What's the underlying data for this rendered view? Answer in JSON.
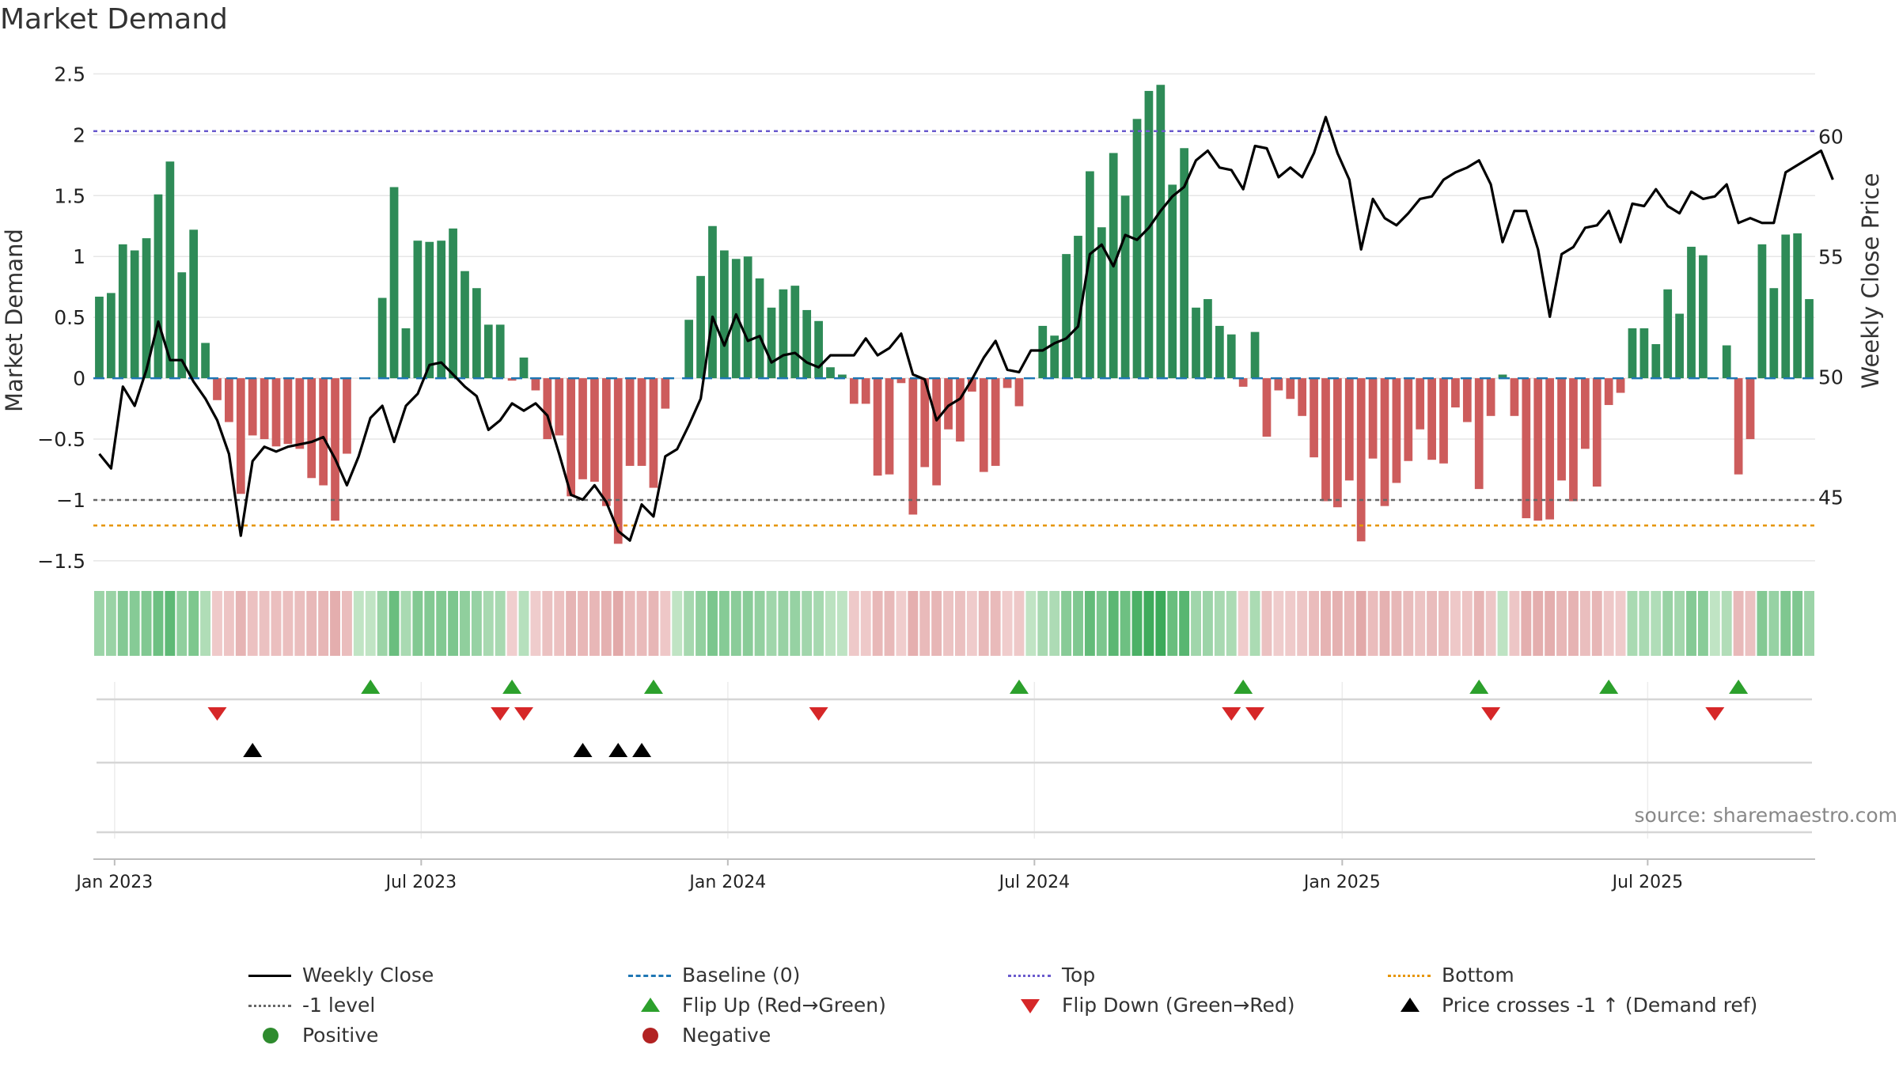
{
  "title": "Market Demand",
  "source": "source: sharemaestro.com",
  "colors": {
    "positive_bar": "#2e8b57",
    "negative_bar": "#cd5c5c",
    "price_line": "#000000",
    "baseline": "#1f77b4",
    "top_line": "#6a5acd",
    "bottom_line": "#e69500",
    "minus1_line": "#666666",
    "flip_up": "#2ca02c",
    "flip_down": "#d62728",
    "cross": "#000000",
    "positive_dot": "#2e8b2e",
    "negative_dot": "#b22222"
  },
  "legend": [
    {
      "label": "Weekly Close",
      "symbol": "solid-line",
      "color": "#000000"
    },
    {
      "label": "Baseline (0)",
      "symbol": "dashed-line",
      "color": "#1f77b4"
    },
    {
      "label": "Top",
      "symbol": "dotted-line",
      "color": "#6a5acd"
    },
    {
      "label": "Bottom",
      "symbol": "dotted-line",
      "color": "#e69500"
    },
    {
      "label": "-1 level",
      "symbol": "dotted-line",
      "color": "#666666"
    },
    {
      "label": "Flip Up (Red→Green)",
      "symbol": "triangle-up",
      "color": "#2ca02c"
    },
    {
      "label": "Flip Down (Green→Red)",
      "symbol": "triangle-down",
      "color": "#d62728"
    },
    {
      "label": "Price crosses -1 ↑ (Demand ref)",
      "symbol": "triangle-up",
      "color": "#000000"
    },
    {
      "label": "Positive",
      "symbol": "dot",
      "color": "#2e8b2e"
    },
    {
      "label": "Negative",
      "symbol": "dot",
      "color": "#b22222"
    }
  ],
  "chart_data": {
    "type": "bar",
    "title": "Market Demand",
    "ylabel": "Market Demand",
    "y2label": "Weekly Close Price",
    "ylim": [
      -1.65,
      2.6
    ],
    "y2lim": [
      41.6,
      63.1
    ],
    "yticks": [
      2.5,
      2,
      1.5,
      1,
      0.5,
      0,
      -0.5,
      -1,
      -1.5
    ],
    "ytick_labels": [
      "2.5",
      "2",
      "1.5",
      "1",
      "0.5",
      "0",
      "−0.5",
      "−1",
      "−1.5"
    ],
    "y2ticks": [
      60,
      55,
      50,
      45
    ],
    "y2tick_labels": [
      "60",
      "55",
      "50",
      "45"
    ],
    "x_start": "2022-12-25",
    "x_week_count": 142,
    "xticks": [
      {
        "week": 1.3,
        "label": "Jan 2023"
      },
      {
        "week": 27.3,
        "label": "Jul 2023"
      },
      {
        "week": 53.3,
        "label": "Jan 2024"
      },
      {
        "week": 79.3,
        "label": "Jul 2024"
      },
      {
        "week": 105.4,
        "label": "Jan 2025"
      },
      {
        "week": 131.3,
        "label": "Jul 2025"
      }
    ],
    "reference_lines": {
      "baseline": 0,
      "top": 2.03,
      "minus1": -1,
      "bottom": -1.21
    },
    "series": [
      {
        "name": "Market Demand",
        "values": [
          0.67,
          0.7,
          1.1,
          1.05,
          1.15,
          1.51,
          1.78,
          0.87,
          1.22,
          0.29,
          -0.18,
          -0.36,
          -0.95,
          -0.47,
          -0.5,
          -0.56,
          -0.54,
          -0.58,
          -0.82,
          -0.88,
          -1.17,
          -0.62,
          0,
          0,
          0.66,
          1.57,
          0.41,
          1.13,
          1.12,
          1.13,
          1.23,
          0.88,
          0.74,
          0.44,
          0.44,
          -0.02,
          0.17,
          -0.1,
          -0.5,
          -0.47,
          -0.97,
          -0.83,
          -0.85,
          -1.05,
          -1.36,
          -0.72,
          -0.72,
          -0.9,
          -0.25,
          0,
          0.48,
          0.84,
          1.25,
          1.05,
          0.98,
          1,
          0.82,
          0.58,
          0.73,
          0.76,
          0.56,
          0.47,
          0.09,
          0.03,
          -0.21,
          -0.21,
          -0.8,
          -0.79,
          -0.04,
          -1.12,
          -0.73,
          -0.88,
          -0.42,
          -0.52,
          -0.11,
          -0.77,
          -0.72,
          -0.08,
          -0.23,
          0,
          0.43,
          0.35,
          1.02,
          1.17,
          1.7,
          1.24,
          1.85,
          1.5,
          2.13,
          2.36,
          2.41,
          1.59,
          1.89,
          0.58,
          0.65,
          0.43,
          0.36,
          -0.07,
          0.38,
          -0.48,
          -0.1,
          -0.17,
          -0.31,
          -0.65,
          -1.01,
          -1.06,
          -0.84,
          -1.34,
          -0.66,
          -1.05,
          -0.86,
          -0.68,
          -0.42,
          -0.67,
          -0.7,
          -0.24,
          -0.36,
          -0.91,
          -0.31,
          0.03,
          -0.31,
          -1.15,
          -1.17,
          -1.16,
          -0.84,
          -1.01,
          -0.58,
          -0.89,
          -0.22,
          -0.12,
          0.41,
          0.41,
          0.28,
          0.73,
          0.53,
          1.08,
          1.01,
          0,
          0.27,
          -0.79,
          -0.5,
          1.1,
          0.74,
          1.18,
          1.19,
          0.65
        ]
      },
      {
        "name": "Weekly Close",
        "axis": "y2",
        "values": [
          46.8,
          46.2,
          49.6,
          48.8,
          50.3,
          52.3,
          50.7,
          50.7,
          49.8,
          49.1,
          48.2,
          46.8,
          43.4,
          46.5,
          47.1,
          46.9,
          47.1,
          47.2,
          47.3,
          47.5,
          46.6,
          45.5,
          46.7,
          48.3,
          48.8,
          47.3,
          48.8,
          49.3,
          50.5,
          50.6,
          50.1,
          49.6,
          49.2,
          47.8,
          48.2,
          48.9,
          48.6,
          48.9,
          48.4,
          46.8,
          45.1,
          44.9,
          45.5,
          44.8,
          43.6,
          43.2,
          44.7,
          44.2,
          46.7,
          47,
          48,
          49.1,
          52.5,
          51.3,
          52.6,
          51.5,
          51.7,
          50.6,
          50.9,
          51,
          50.6,
          50.4,
          50.9,
          50.9,
          50.9,
          51.6,
          50.9,
          51.2,
          51.8,
          50.1,
          49.9,
          48.2,
          48.8,
          49.1,
          49.9,
          50.8,
          51.5,
          50.3,
          50.2,
          51.1,
          51.1,
          51.4,
          51.6,
          52.1,
          55.1,
          55.5,
          54.6,
          55.9,
          55.7,
          56.2,
          56.9,
          57.5,
          57.9,
          59,
          59.4,
          58.7,
          58.6,
          57.8,
          59.6,
          59.5,
          58.3,
          58.7,
          58.3,
          59.3,
          60.8,
          59.3,
          58.2,
          55.3,
          57.4,
          56.6,
          56.3,
          56.8,
          57.4,
          57.5,
          58.2,
          58.5,
          58.7,
          59,
          58,
          55.6,
          56.9,
          56.9,
          55.3,
          52.5,
          55.1,
          55.4,
          56.2,
          56.3,
          56.9,
          55.6,
          57.2,
          57.1,
          57.8,
          57.1,
          56.8,
          57.7,
          57.4,
          57.5,
          58,
          56.4,
          56.6,
          56.4,
          56.4,
          58.5,
          58.8,
          59.1,
          59.4,
          58.2
        ]
      }
    ],
    "status_strip": {
      "description": "weekly intensity strip colored by demand sign and magnitude"
    },
    "events": {
      "flip_up_weeks": [
        23,
        35,
        47,
        78,
        97,
        117,
        128,
        139
      ],
      "flip_down_weeks": [
        10,
        34,
        36,
        61,
        96,
        98,
        118,
        137
      ],
      "price_cross_weeks": [
        13,
        41,
        44,
        46
      ]
    }
  }
}
